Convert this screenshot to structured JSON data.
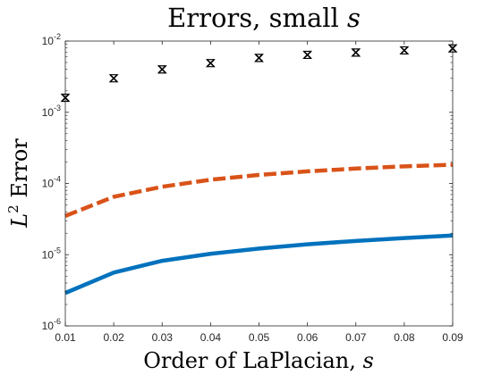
{
  "chart_data": {
    "type": "line",
    "title": "Errors, small ",
    "title_var": "s",
    "xlabel": "Order of LaPlacian, ",
    "xlabel_var": "s",
    "ylabel_L": "L",
    "ylabel_sup": "2",
    "ylabel_rest": " Error",
    "xlim": [
      0.01,
      0.09
    ],
    "ylim": [
      1e-06,
      0.01
    ],
    "yscale": "log",
    "grid": false,
    "x": [
      0.01,
      0.02,
      0.03,
      0.04,
      0.05,
      0.06,
      0.07,
      0.08,
      0.09
    ],
    "x_ticks": [
      "0.01",
      "0.02",
      "0.03",
      "0.04",
      "0.05",
      "0.06",
      "0.07",
      "0.08",
      "0.09"
    ],
    "y_ticks": [
      {
        "base": "10",
        "exp": "-6",
        "value": 1e-06
      },
      {
        "base": "10",
        "exp": "-5",
        "value": 1e-05
      },
      {
        "base": "10",
        "exp": "-4",
        "value": 0.0001
      },
      {
        "base": "10",
        "exp": "-3",
        "value": 0.001
      },
      {
        "base": "10",
        "exp": "-2",
        "value": 0.01
      }
    ],
    "series": [
      {
        "style": "markers",
        "color": "#000000",
        "values": [
          0.0016,
          0.003,
          0.004,
          0.0049,
          0.0058,
          0.0064,
          0.0069,
          0.0074,
          0.0079
        ]
      },
      {
        "style": "dashed",
        "color": "#D95319",
        "values": [
          3.5e-05,
          6.5e-05,
          9e-05,
          0.000113,
          0.000132,
          0.000148,
          0.000162,
          0.000174,
          0.000183
        ]
      },
      {
        "style": "solid",
        "color": "#0072BD",
        "values": [
          2.9e-06,
          5.6e-06,
          8.2e-06,
          1.03e-05,
          1.22e-05,
          1.4e-05,
          1.56e-05,
          1.71e-05,
          1.86e-05
        ]
      }
    ]
  }
}
